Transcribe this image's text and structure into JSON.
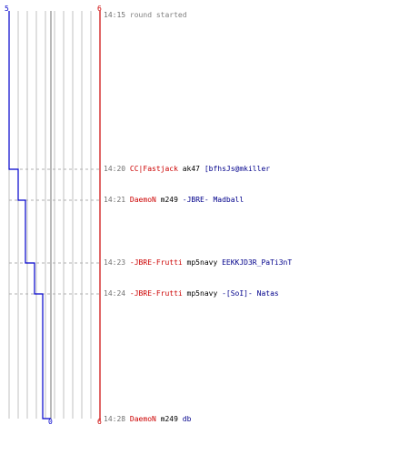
{
  "scores": {
    "blue_start": "5",
    "red_start": "6",
    "blue_end": "0",
    "red_end": "6"
  },
  "colors": {
    "blue_team": "#0000cc",
    "red_team": "#cc0000",
    "grid": "#c0c0c0",
    "dashed": "#b0b0b0"
  },
  "events": [
    {
      "time": "14:15",
      "parts": [
        {
          "text": "round started",
          "color": "gray"
        }
      ]
    },
    {
      "time": "14:20",
      "parts": [
        {
          "text": "CC|Fastjack",
          "color": "red"
        },
        {
          "text": "ak47",
          "color": "black"
        },
        {
          "text": "[bfhsJs@mkiller",
          "color": "blue"
        }
      ]
    },
    {
      "time": "14:21",
      "parts": [
        {
          "text": "DaemoN",
          "color": "red"
        },
        {
          "text": "m249",
          "color": "black"
        },
        {
          "text": "-JBRE- Madball",
          "color": "blue"
        }
      ]
    },
    {
      "time": "14:23",
      "parts": [
        {
          "text": "-JBRE-Frutti",
          "color": "red"
        },
        {
          "text": "mp5navy",
          "color": "black"
        },
        {
          "text": "EEKKJD3R_PaTi3nT",
          "color": "blue"
        }
      ]
    },
    {
      "time": "14:24",
      "parts": [
        {
          "text": "-JBRE-Frutti",
          "color": "red"
        },
        {
          "text": "mp5navy",
          "color": "black"
        },
        {
          "text": "-[SoI]- Natas",
          "color": "blue"
        }
      ]
    },
    {
      "time": "14:28",
      "parts": [
        {
          "text": "DaemoN",
          "color": "red"
        },
        {
          "text": "m249",
          "color": "black"
        },
        {
          "text": "db",
          "color": "blue"
        }
      ]
    }
  ],
  "blue_alive_steps": [
    5,
    4,
    3,
    2,
    1,
    0
  ],
  "red_alive_steps": [
    6,
    6,
    6,
    6,
    6,
    6
  ]
}
